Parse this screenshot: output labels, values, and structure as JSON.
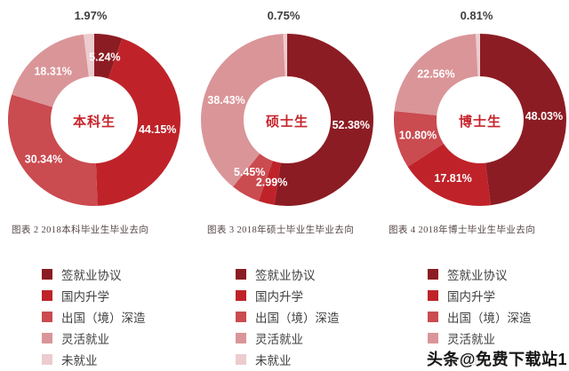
{
  "palette": [
    "#8c1c23",
    "#bf2329",
    "#ca4b50",
    "#da9598",
    "#ecccce"
  ],
  "accent_red": "#c7242b",
  "label_text_color": "#3f3f3f",
  "caption_color": "#554646",
  "legend": {
    "items": [
      "签就业协议",
      "国内升学",
      "出国（境）深造",
      "灵活就业",
      "未就业"
    ]
  },
  "watermark": {
    "text": "头条@免费下载站1"
  },
  "chart_data": [
    {
      "type": "pie",
      "variant": "donut",
      "title": "图表 2  2018本科毕业生毕业去向",
      "center_label": "本科生",
      "categories": [
        "签就业协议",
        "国内升学",
        "出国（境）深造",
        "灵活就业",
        "未就业"
      ],
      "values": [
        5.24,
        44.15,
        30.34,
        18.31,
        1.97
      ],
      "labels": [
        "5.24%",
        "44.15%",
        "30.34%",
        "18.31%",
        "1.97%"
      ],
      "start_angle_deg": 0,
      "direction": "clockwise",
      "legend_position": "bottom"
    },
    {
      "type": "pie",
      "variant": "donut",
      "title": "图表 3  2018年硕士毕业生毕业去向",
      "center_label": "硕士生",
      "categories": [
        "签就业协议",
        "国内升学",
        "出国（境）深造",
        "灵活就业",
        "未就业"
      ],
      "values": [
        52.38,
        2.99,
        5.45,
        38.43,
        0.75
      ],
      "labels": [
        "52.38%",
        "2.99%",
        "5.45%",
        "38.43%",
        "0.75%"
      ],
      "start_angle_deg": 0,
      "direction": "clockwise",
      "legend_position": "bottom"
    },
    {
      "type": "pie",
      "variant": "donut",
      "title": "图表 4  2018年博士毕业生毕业去向",
      "center_label": "博士生",
      "categories": [
        "签就业协议",
        "国内升学",
        "出国（境）深造",
        "灵活就业",
        "未就业"
      ],
      "values": [
        48.03,
        17.81,
        10.8,
        22.56,
        0.81
      ],
      "labels": [
        "48.03%",
        "17.81%",
        "10.80%",
        "22.56%",
        "0.81%"
      ],
      "start_angle_deg": 0,
      "direction": "clockwise",
      "legend_position": "bottom"
    }
  ]
}
